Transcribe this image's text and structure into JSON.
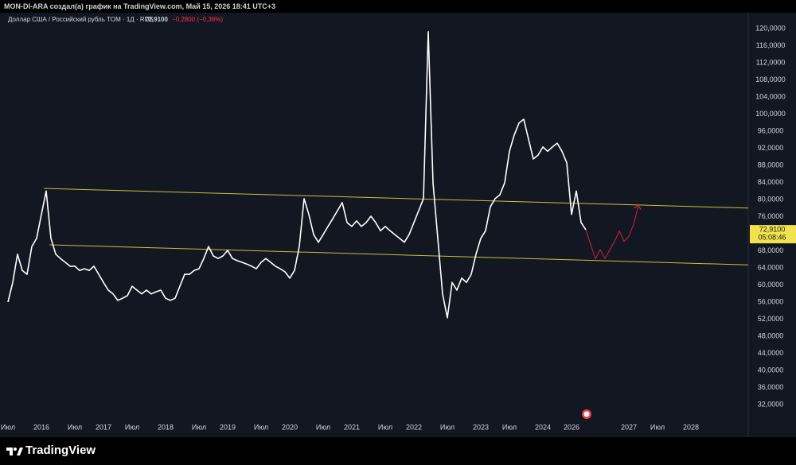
{
  "header": {
    "author_line": "MON-DI-ARA создал(а) график на TradingView.com, Май 15, 2026 18:41 UTC+3",
    "symbol": "Доллар США / Российский рубль TOM · 1Д · RUS",
    "price": "72,9100",
    "change": "−0,2800 (−0,38%)"
  },
  "footer": {
    "brand": "TradingView"
  },
  "chart_data": {
    "type": "line",
    "categories": [
      "Июл",
      null,
      null,
      null,
      null,
      null,
      null,
      "2016",
      null,
      null,
      null,
      null,
      null,
      null,
      "Июл",
      null,
      null,
      null,
      null,
      null,
      "2017",
      null,
      null,
      null,
      null,
      null,
      "Июл",
      null,
      null,
      null,
      null,
      null,
      null,
      "2018",
      null,
      null,
      null,
      null,
      null,
      null,
      "Июл",
      null,
      null,
      null,
      null,
      null,
      "2019",
      null,
      null,
      null,
      null,
      null,
      null,
      "Июл",
      null,
      null,
      null,
      null,
      null,
      "2020",
      null,
      null,
      null,
      null,
      null,
      null,
      "Июл",
      null,
      null,
      null,
      null,
      null,
      "2021",
      null,
      null,
      null,
      null,
      null,
      null,
      "Июл",
      null,
      null,
      null,
      null,
      null,
      "2022",
      null,
      null,
      null,
      null,
      null,
      null,
      "Июл",
      null,
      null,
      null,
      null,
      null,
      null,
      "2023",
      null,
      null,
      null,
      null,
      null,
      "Июл",
      null,
      null,
      null,
      null,
      null,
      null,
      "2024",
      null,
      null,
      null,
      null,
      null,
      "2026",
      null,
      null,
      null,
      null,
      null,
      null,
      null,
      null,
      null,
      null,
      null,
      "2027",
      null,
      null,
      null,
      null,
      null,
      "Июл",
      null,
      null,
      null,
      null,
      null,
      null,
      "2028"
    ],
    "series": [
      {
        "color": "#ffffff",
        "values": [
          56,
          60.6,
          67.2,
          63.4,
          62.5,
          69,
          70.9,
          76.5,
          82,
          70.9,
          67.2,
          66.2,
          65.3,
          64.4,
          64.4,
          63.4,
          63.8,
          63.4,
          64.4,
          62.5,
          60.6,
          58.8,
          57.9,
          56.4,
          56.9,
          57.5,
          59.7,
          58.8,
          57.9,
          58.8,
          57.9,
          58.4,
          58.8,
          56.9,
          56.4,
          56.9,
          59.7,
          62.5,
          62.5,
          63.4,
          63.8,
          66.2,
          69,
          66.8,
          66.2,
          66.8,
          68.1,
          66.2,
          65.7,
          65.3,
          64.9,
          64.4,
          63.8,
          65.3,
          66.2,
          65.3,
          64.4,
          63.8,
          63.1,
          61.6,
          63.4,
          69,
          80.2,
          76.5,
          71.8,
          70,
          71.8,
          73.7,
          75.5,
          77.4,
          79.3,
          74.6,
          73.7,
          75,
          73.7,
          74.6,
          76.1,
          74.6,
          72.7,
          73.7,
          72.7,
          71.8,
          70.9,
          70,
          71.8,
          74.6,
          77.4,
          80.2,
          119.3,
          83.9,
          70.9,
          57.9,
          52.3,
          60.6,
          58.8,
          61.6,
          60.6,
          62.5,
          67.2,
          70.9,
          72.7,
          78.3,
          80.2,
          81.1,
          83.9,
          91.3,
          95.1,
          97.9,
          98.8,
          94.1,
          89.5,
          90.4,
          92.3,
          91.3,
          92.3,
          93.2,
          91.3,
          88.6,
          76.5,
          82,
          74.6,
          72.91,
          null,
          null,
          null,
          null,
          null,
          null,
          null,
          null,
          null,
          null,
          null,
          null,
          null,
          null,
          null,
          null,
          null,
          null,
          null,
          null,
          null,
          null
        ]
      },
      {
        "color": "#b2223c",
        "values": [
          null,
          null,
          null,
          null,
          null,
          null,
          null,
          null,
          null,
          null,
          null,
          null,
          null,
          null,
          null,
          null,
          null,
          null,
          null,
          null,
          null,
          null,
          null,
          null,
          null,
          null,
          null,
          null,
          null,
          null,
          null,
          null,
          null,
          null,
          null,
          null,
          null,
          null,
          null,
          null,
          null,
          null,
          null,
          null,
          null,
          null,
          null,
          null,
          null,
          null,
          null,
          null,
          null,
          null,
          null,
          null,
          null,
          null,
          null,
          null,
          null,
          null,
          null,
          null,
          null,
          null,
          null,
          null,
          null,
          null,
          null,
          null,
          null,
          null,
          null,
          null,
          null,
          null,
          null,
          null,
          null,
          null,
          null,
          null,
          null,
          null,
          null,
          null,
          null,
          null,
          null,
          null,
          null,
          null,
          null,
          null,
          null,
          null,
          null,
          null,
          null,
          null,
          null,
          null,
          null,
          null,
          null,
          null,
          null,
          null,
          null,
          null,
          null,
          null,
          null,
          null,
          null,
          null,
          null,
          null,
          null,
          72.91,
          69.5,
          66.1,
          68.3,
          66.2,
          68.2,
          70.2,
          72.7,
          70.2,
          71.4,
          74.2,
          78.6,
          null,
          null,
          null,
          null,
          null,
          null,
          null,
          null,
          null,
          null,
          null
        ]
      }
    ],
    "trendlines": [
      {
        "color": "#c9c13a",
        "x": [
          7.5,
          155
        ],
        "y": [
          82.6,
          78
        ]
      },
      {
        "color": "#c9c13a",
        "x": [
          8.67,
          155
        ],
        "y": [
          69.4,
          64.7
        ]
      }
    ],
    "last_price": {
      "value": 72.91,
      "label": "72,9100",
      "countdown": "05:08:46",
      "color": "#f2e34c"
    },
    "xlim": [
      -1.6667,
      155
    ],
    "ylim": [
      28.1,
      123.35
    ],
    "yticks": [
      {
        "value": 32,
        "label": "32,0000"
      },
      {
        "value": 36,
        "label": "36,0000"
      },
      {
        "value": 40,
        "label": "40,0000"
      },
      {
        "value": 44,
        "label": "44,0000"
      },
      {
        "value": 48,
        "label": "48,0000"
      },
      {
        "value": 52,
        "label": "52,0000"
      },
      {
        "value": 56,
        "label": "56,0000"
      },
      {
        "value": 60,
        "label": "60,0000"
      },
      {
        "value": 64,
        "label": "64,0000"
      },
      {
        "value": 68,
        "label": "68,0000"
      },
      {
        "value": 72,
        "label": "72,0000"
      },
      {
        "value": 76,
        "label": "76,0000"
      },
      {
        "value": 80,
        "label": "80,0000"
      },
      {
        "value": 84,
        "label": "84,0000"
      },
      {
        "value": 88,
        "label": "88,0000"
      },
      {
        "value": 92,
        "label": "92,0000"
      },
      {
        "value": 96,
        "label": "96,0000"
      },
      {
        "value": 100,
        "label": "100,0000"
      },
      {
        "value": 104,
        "label": "104,0000"
      },
      {
        "value": 108,
        "label": "108,0000"
      },
      {
        "value": 112,
        "label": "112,0000"
      },
      {
        "value": 116,
        "label": "116,0000"
      },
      {
        "value": 120,
        "label": "120,0000"
      }
    ],
    "grid": false
  }
}
